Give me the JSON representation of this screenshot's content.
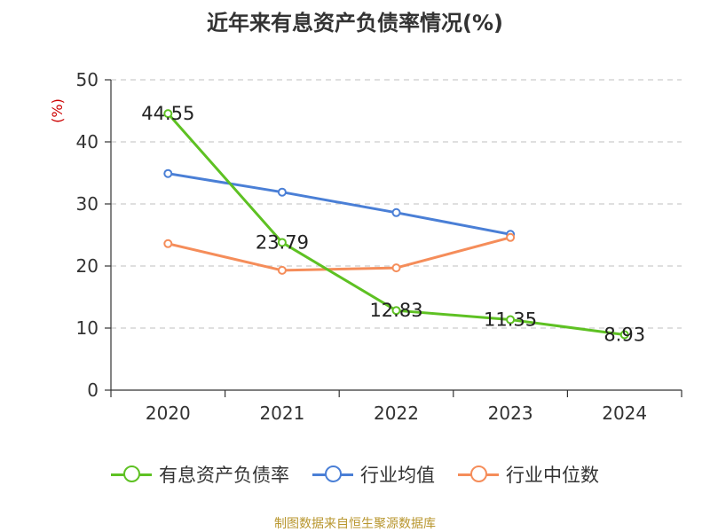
{
  "chart_data": {
    "type": "line",
    "title": "近年来有息资产负债率情况(%)",
    "ylabel": "(%)",
    "xlabel": "",
    "categories": [
      "2020",
      "2021",
      "2022",
      "2023",
      "2024"
    ],
    "ylim": [
      0,
      50
    ],
    "yticks": [
      0,
      10,
      20,
      30,
      40,
      50
    ],
    "grid": true,
    "legend_position": "bottom",
    "series": [
      {
        "name": "有息资产负债率",
        "color": "#5ec123",
        "values": [
          44.55,
          23.79,
          12.83,
          11.35,
          8.93
        ],
        "labels": [
          "44.55",
          "23.79",
          "12.83",
          "11.35",
          "8.93"
        ]
      },
      {
        "name": "行业均值",
        "color": "#4a7fd6",
        "values": [
          34.9,
          31.9,
          28.6,
          25.1,
          null
        ]
      },
      {
        "name": "行业中位数",
        "color": "#f58d5a",
        "values": [
          23.6,
          19.3,
          19.7,
          24.6,
          null
        ]
      }
    ]
  },
  "source": "制图数据来自恒生聚源数据库",
  "colors": {
    "axis": "#333333",
    "grid": "#cccccc",
    "ylabel": "#cc0000"
  }
}
